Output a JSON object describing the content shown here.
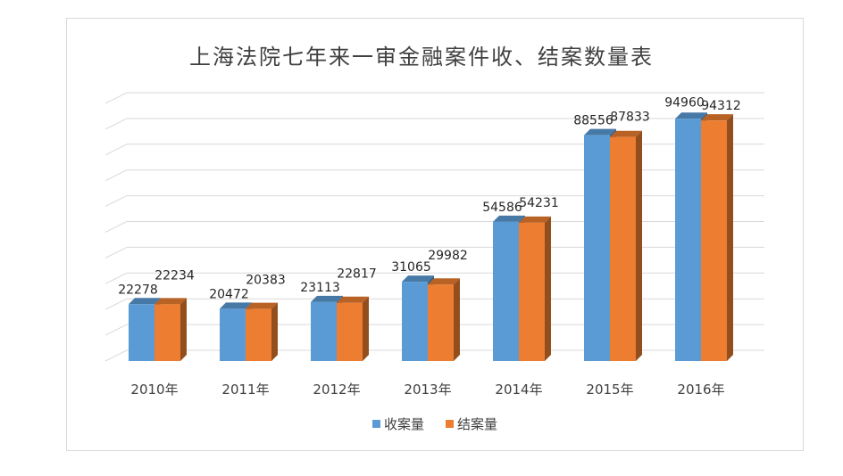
{
  "chart_data": {
    "type": "bar",
    "title": "上海法院七年来一审金融案件收、结案数量表",
    "categories": [
      "2010年",
      "2011年",
      "2012年",
      "2013年",
      "2014年",
      "2015年",
      "2016年"
    ],
    "series": [
      {
        "name": "收案量",
        "color": "#5b9bd5",
        "values": [
          22278,
          20472,
          23113,
          31065,
          54586,
          88556,
          94960
        ]
      },
      {
        "name": "结案量",
        "color": "#ed7d31",
        "values": [
          22234,
          20383,
          22817,
          29982,
          54231,
          87833,
          94312
        ]
      }
    ],
    "ylim": [
      0,
      100000
    ],
    "grid": true,
    "legend": "bottom",
    "three_d": true
  }
}
